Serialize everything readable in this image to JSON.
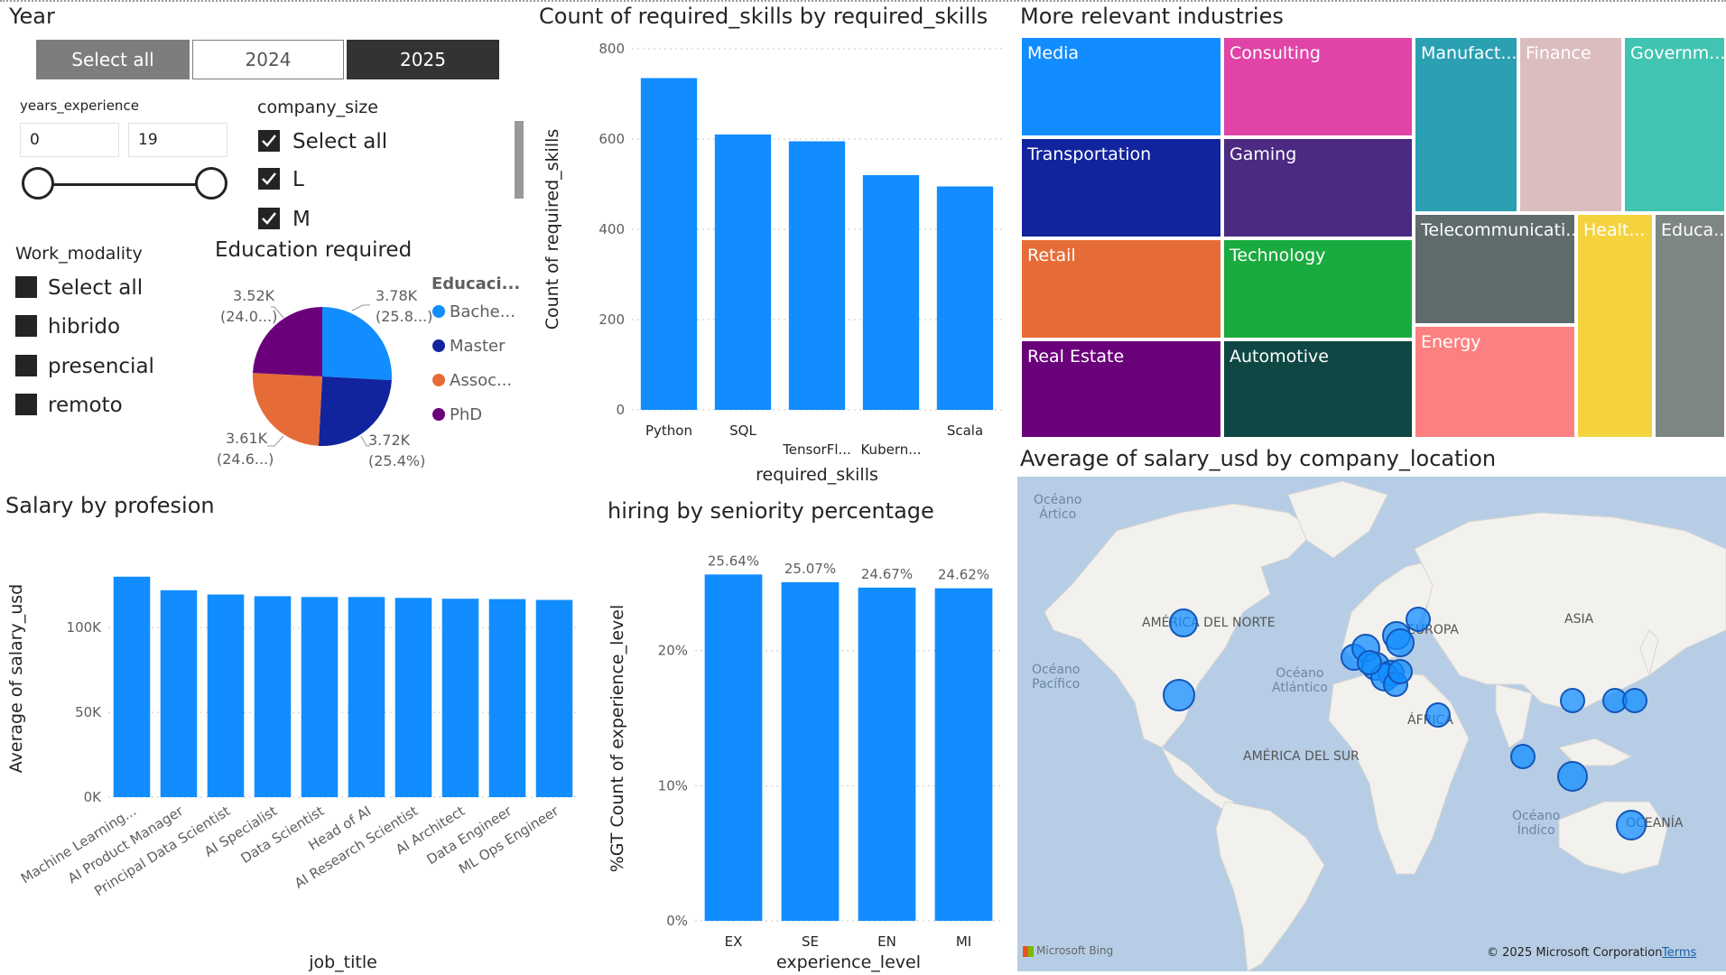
{
  "year_slicer": {
    "title": "Year",
    "buttons": [
      {
        "label": "Select all",
        "state": "neutral"
      },
      {
        "label": "2024",
        "state": "unselected"
      },
      {
        "label": "2025",
        "state": "selected"
      }
    ]
  },
  "experience_slicer": {
    "title": "years_experience",
    "min_value": "0",
    "max_value": "19"
  },
  "company_size_slicer": {
    "title": "company_size",
    "items": [
      {
        "label": "Select all",
        "checked": true
      },
      {
        "label": "L",
        "checked": true
      },
      {
        "label": "M",
        "checked": true
      }
    ]
  },
  "work_modality_slicer": {
    "title": "Work_modality",
    "items": [
      {
        "label": "Select all"
      },
      {
        "label": "hibrido"
      },
      {
        "label": "presencial"
      },
      {
        "label": "remoto"
      }
    ]
  },
  "education_pie": {
    "title": "Education required",
    "legend_title": "Educaci...",
    "slices": [
      {
        "name": "Bache...",
        "value_label": "3.78K",
        "pct_label": "(25.8...)",
        "color": "#118dff"
      },
      {
        "name": "Master",
        "value_label": "3.72K",
        "pct_label": "(25.4%)",
        "color": "#12239e"
      },
      {
        "name": "Assoc...",
        "value_label": "3.61K",
        "pct_label": "(24.6...)",
        "color": "#e66c37"
      },
      {
        "name": "PhD",
        "value_label": "3.52K",
        "pct_label": "(24.0...)",
        "color": "#6b007b"
      }
    ]
  },
  "chart_data": [
    {
      "type": "bar",
      "title": "Count of required_skills by required_skills",
      "xlabel": "required_skills",
      "ylabel": "Count of required_skills",
      "categories": [
        "Python",
        "SQL",
        "TensorFl...",
        "Kubern...",
        "Scala"
      ],
      "values": [
        735,
        610,
        595,
        520,
        495
      ],
      "yticks": [
        "0",
        "200",
        "400",
        "600",
        "800"
      ],
      "ylim": [
        0,
        800
      ],
      "color": "#118dff"
    },
    {
      "type": "bar",
      "title": "Salary by profesion",
      "xlabel": "job_title",
      "ylabel": "Average of salary_usd",
      "categories": [
        "Machine Learning...",
        "AI Product Manager",
        "Principal Data Scientist",
        "AI Specialist",
        "Data Scientist",
        "Head of AI",
        "AI Research Scientist",
        "AI Architect",
        "Data Engineer",
        "ML Ops Engineer"
      ],
      "values": [
        130000,
        122000,
        119500,
        118500,
        118000,
        118000,
        117500,
        117000,
        116800,
        116300
      ],
      "yticks": [
        "0K",
        "50K",
        "100K"
      ],
      "ylim": [
        0,
        140000
      ],
      "color": "#118dff"
    },
    {
      "type": "bar",
      "title": "hiring by seniority percentage",
      "xlabel": "experience_level",
      "ylabel": "%GT Count of experience_level",
      "categories": [
        "EX",
        "SE",
        "EN",
        "MI"
      ],
      "values": [
        25.64,
        25.07,
        24.67,
        24.62
      ],
      "data_labels": [
        "25.64%",
        "25.07%",
        "24.67%",
        "24.62%"
      ],
      "yticks": [
        "0%",
        "10%",
        "20%"
      ],
      "ylim": [
        0,
        27
      ],
      "color": "#118dff"
    },
    {
      "type": "treemap",
      "title": "More relevant industries",
      "categories": [
        "Media",
        "Consulting",
        "Manufact...",
        "Finance",
        "Governm...",
        "Transportation",
        "Gaming",
        "Telecommunicati...",
        "Healt...",
        "Educa...",
        "Retail",
        "Technology",
        "Energy",
        "Real Estate",
        "Automotive"
      ]
    }
  ],
  "industries": {
    "title": "More relevant industries",
    "cells": [
      {
        "label": "Media",
        "color": "#118dff"
      },
      {
        "label": "Consulting",
        "color": "#e044a7"
      },
      {
        "label": "Manufact...",
        "color": "#2aa0b2"
      },
      {
        "label": "Finance",
        "color": "#dcbdbf"
      },
      {
        "label": "Governm...",
        "color": "#41c4b1"
      },
      {
        "label": "Transportation",
        "color": "#12239e"
      },
      {
        "label": "Gaming",
        "color": "#4a2a82"
      },
      {
        "label": "Telecommunicati...",
        "color": "#5f6b6d"
      },
      {
        "label": "Healt...",
        "color": "#f5d33f"
      },
      {
        "label": "Educa...",
        "color": "#7d8683"
      },
      {
        "label": "Retail",
        "color": "#e66c37"
      },
      {
        "label": "Technology",
        "color": "#1aab40"
      },
      {
        "label": "Energy",
        "color": "#fd8080"
      },
      {
        "label": "Real Estate",
        "color": "#6b007b"
      },
      {
        "label": "Automotive",
        "color": "#0f4744"
      }
    ]
  },
  "map": {
    "title": "Average of salary_usd by company_location",
    "labels": {
      "artico": "Océano\nÁrtico",
      "na": "AMÉRICA DEL NORTE",
      "europa": "EUROPA",
      "asia": "ASIA",
      "pacifico": "Océano\nPacífico",
      "atlantico": "Océano\nAtlántico",
      "africa": "ÁFRICA",
      "sa": "AMÉRICA DEL SUR",
      "indico": "Océano\nÍndico",
      "oceania": "OCEANÍA"
    },
    "bing_label": "Microsoft Bing",
    "copyright": "© 2025 Microsoft Corporation",
    "terms": "Terms"
  }
}
